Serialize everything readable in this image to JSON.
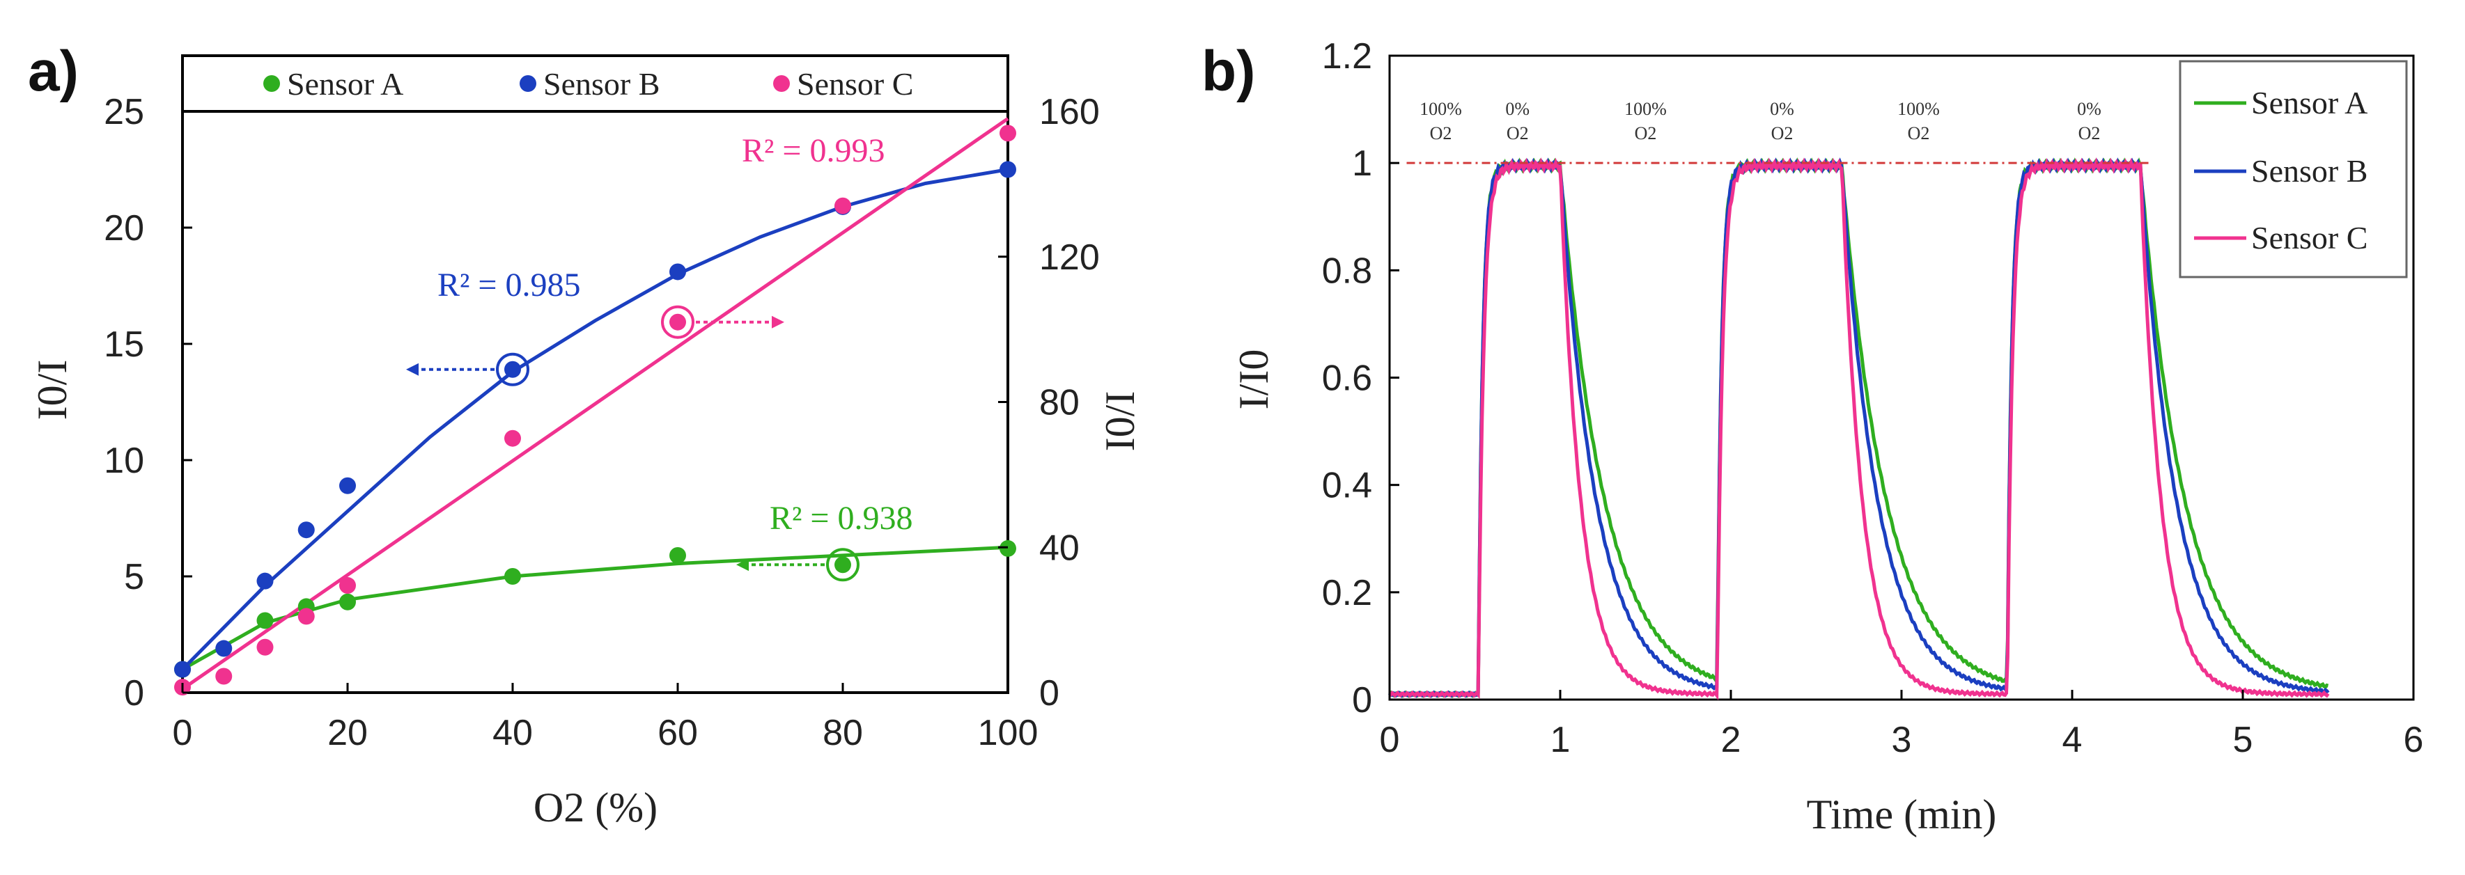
{
  "panels": {
    "a": "a)",
    "b": "b)"
  },
  "colors": {
    "sensor_a": "#2fae1f",
    "sensor_b": "#1b3fc0",
    "sensor_c": "#f0328f",
    "reference": "#d23a3a"
  },
  "chart_data": [
    {
      "type": "scatter",
      "panel": "a)",
      "legend": [
        "Sensor A",
        "Sensor B",
        "Sensor C"
      ],
      "legend_placement": "top",
      "xlabel": "O2 (%)",
      "ylabel_left": "I0/I",
      "ylabel_right": "I0/I",
      "xlim": [
        0,
        100
      ],
      "ylim_left": [
        0,
        25
      ],
      "ylim_right": [
        0,
        160
      ],
      "x_ticks": [
        "0",
        "20",
        "40",
        "60",
        "80",
        "100"
      ],
      "y_left_ticks": [
        "0",
        "5",
        "10",
        "15",
        "20",
        "25"
      ],
      "y_right_ticks": [
        "0",
        "40",
        "80",
        "120",
        "160"
      ],
      "series": [
        {
          "name": "Sensor A",
          "axis": "left",
          "x": [
            0,
            10,
            15,
            20,
            40,
            60,
            80,
            100
          ],
          "y": [
            1.0,
            3.1,
            3.7,
            3.9,
            5.0,
            5.9,
            5.5,
            6.2
          ],
          "r2": "R² = 0.938",
          "fit": [
            [
              0,
              1.0
            ],
            [
              10,
              3.0
            ],
            [
              20,
              4.0
            ],
            [
              40,
              5.0
            ],
            [
              60,
              5.55
            ],
            [
              80,
              5.9
            ],
            [
              100,
              6.25
            ]
          ],
          "highlight_x": 80,
          "arrow": "left"
        },
        {
          "name": "Sensor B",
          "axis": "left",
          "x": [
            0,
            5,
            10,
            15,
            20,
            40,
            60,
            80,
            100
          ],
          "y": [
            1.0,
            1.9,
            4.8,
            7.0,
            8.9,
            13.9,
            18.1,
            20.9,
            22.5
          ],
          "r2": "R² = 0.985",
          "fit": [
            [
              0,
              1.0
            ],
            [
              10,
              4.6
            ],
            [
              20,
              7.8
            ],
            [
              30,
              11.0
            ],
            [
              40,
              13.8
            ],
            [
              50,
              16.0
            ],
            [
              60,
              18.0
            ],
            [
              70,
              19.6
            ],
            [
              80,
              20.9
            ],
            [
              90,
              21.9
            ],
            [
              100,
              22.5
            ]
          ],
          "highlight_x": 40,
          "arrow": "left"
        },
        {
          "name": "Sensor C",
          "axis": "right",
          "x": [
            0,
            5,
            10,
            15,
            20,
            40,
            60,
            80,
            100
          ],
          "y": [
            1.5,
            4.5,
            12.5,
            21.0,
            29.5,
            70.0,
            102.0,
            134.0,
            154.0
          ],
          "r2": "R² = 0.993",
          "fit": [
            [
              0,
              1.0
            ],
            [
              100,
              158.0
            ]
          ],
          "highlight_x": 60,
          "arrow": "right"
        }
      ]
    },
    {
      "type": "line",
      "panel": "b)",
      "legend": [
        "Sensor A",
        "Sensor B",
        "Sensor C"
      ],
      "legend_placement": "top-right",
      "xlabel": "Time (min)",
      "ylabel": "I/I0",
      "xlim": [
        0,
        6
      ],
      "ylim": [
        0,
        1.2
      ],
      "x_ticks": [
        "0",
        "1",
        "2",
        "3",
        "4",
        "5",
        "6"
      ],
      "y_ticks": [
        "0",
        "0.2",
        "0.4",
        "0.6",
        "0.8",
        "1",
        "1.2"
      ],
      "reference_line": 1.0,
      "annotations": [
        {
          "top": "100%",
          "bottom": "O2",
          "x": 0.3
        },
        {
          "top": "0%",
          "bottom": "O2",
          "x": 0.75
        },
        {
          "top": "100%",
          "bottom": "O2",
          "x": 1.5
        },
        {
          "top": "0%",
          "bottom": "O2",
          "x": 2.3
        },
        {
          "top": "100%",
          "bottom": "O2",
          "x": 3.1
        },
        {
          "top": "0%",
          "bottom": "O2",
          "x": 4.1
        }
      ],
      "switches": {
        "rise": [
          0.52,
          1.92,
          3.62
        ],
        "fall": [
          1.0,
          2.65,
          4.4
        ],
        "end": 5.5
      },
      "series": [
        {
          "name": "Sensor A",
          "tau_rise": 0.025,
          "tau_fall": 0.26
        },
        {
          "name": "Sensor B",
          "tau_rise": 0.025,
          "tau_fall": 0.21
        },
        {
          "name": "Sensor C",
          "tau_rise": 0.03,
          "tau_fall": 0.12
        }
      ]
    }
  ]
}
